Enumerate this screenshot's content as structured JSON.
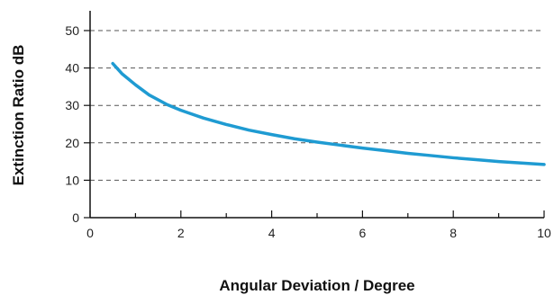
{
  "chart_data": {
    "type": "line",
    "title": "",
    "xlabel": "Angular Deviation / Degree",
    "ylabel": "Extinction Ratio dB",
    "xlim": [
      0,
      10
    ],
    "ylim": [
      0,
      50
    ],
    "x_ticks": [
      0,
      2,
      4,
      6,
      8,
      10
    ],
    "x_minor_ticks": [
      1,
      3,
      5,
      7,
      9
    ],
    "y_ticks": [
      0,
      10,
      20,
      30,
      40,
      50
    ],
    "x_tick_labels": [
      "0",
      "2",
      "4",
      "6",
      "8",
      "10"
    ],
    "y_tick_labels": [
      "0",
      "10",
      "20",
      "30",
      "40",
      "50"
    ],
    "grid": "horizontal-dashed",
    "legend": "none",
    "series": [
      {
        "color": "#1f9bd2",
        "x": [
          0.5,
          0.7,
          1.0,
          1.3,
          1.7,
          2.0,
          2.5,
          3.0,
          3.5,
          4.0,
          4.5,
          5.0,
          5.5,
          6.0,
          6.5,
          7.0,
          7.5,
          8.0,
          8.5,
          9.0,
          9.5,
          10.0
        ],
        "y": [
          41.2,
          38.5,
          35.5,
          32.8,
          30.2,
          28.7,
          26.6,
          24.9,
          23.4,
          22.2,
          21.1,
          20.2,
          19.4,
          18.6,
          17.9,
          17.2,
          16.6,
          16.0,
          15.5,
          15.0,
          14.6,
          14.2
        ]
      }
    ]
  }
}
